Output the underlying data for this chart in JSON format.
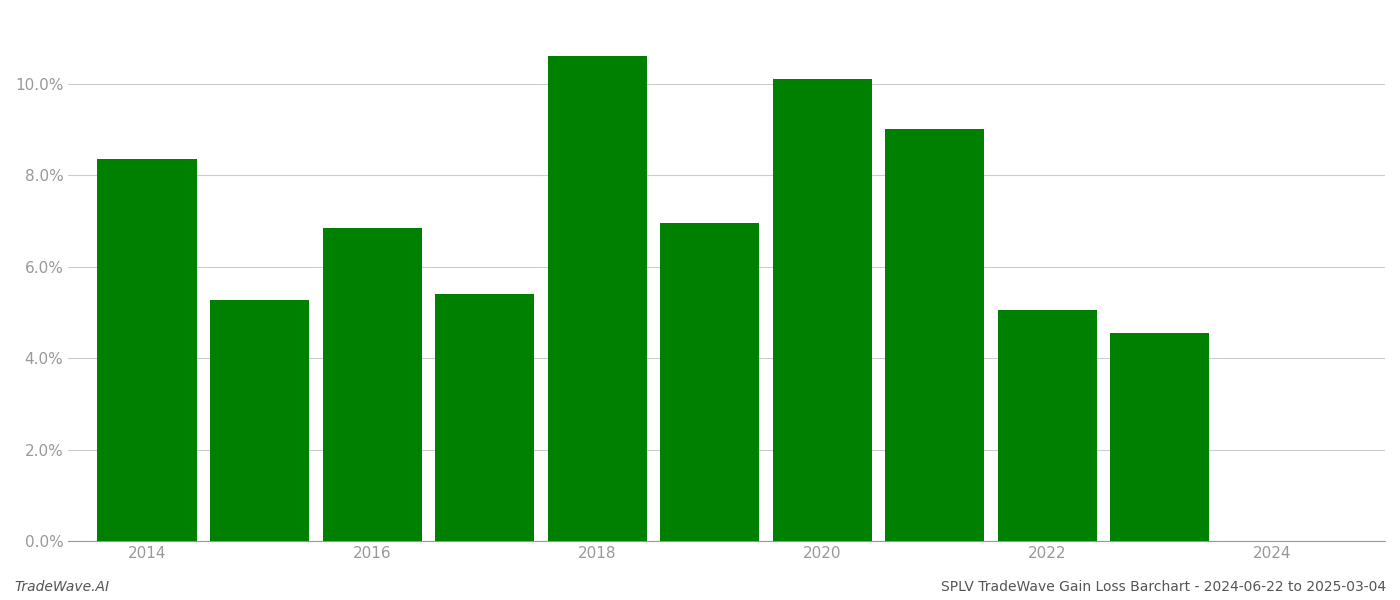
{
  "years": [
    2014,
    2015,
    2016,
    2017,
    2018,
    2019,
    2020,
    2021,
    2022,
    2023
  ],
  "values": [
    0.0835,
    0.0527,
    0.0685,
    0.054,
    0.106,
    0.0695,
    0.101,
    0.09,
    0.0505,
    0.0455
  ],
  "bar_color": "#008000",
  "background_color": "#ffffff",
  "tick_color": "#999999",
  "grid_color": "#cccccc",
  "bottom_left_text": "TradeWave.AI",
  "bottom_right_text": "SPLV TradeWave Gain Loss Barchart - 2024-06-22 to 2025-03-04",
  "ylim": [
    0,
    0.115
  ],
  "yticks": [
    0.0,
    0.02,
    0.04,
    0.06,
    0.08,
    0.1
  ],
  "xlim": [
    2013.3,
    2025.0
  ],
  "xtick_positions": [
    2014,
    2016,
    2018,
    2020,
    2022,
    2024
  ],
  "bar_width": 0.88,
  "fig_width": 14.0,
  "fig_height": 6.0,
  "dpi": 100
}
